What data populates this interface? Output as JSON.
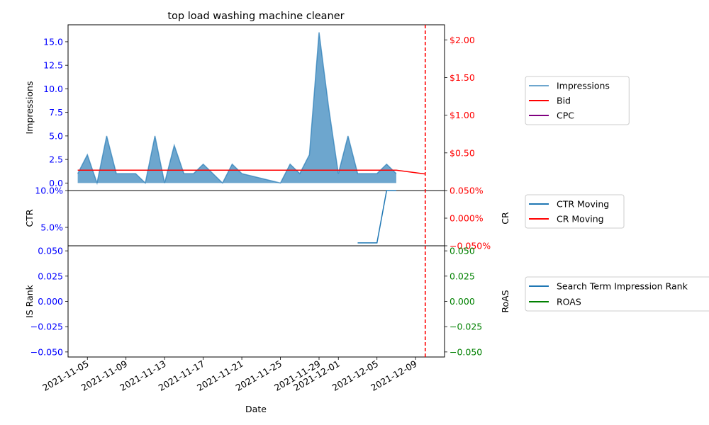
{
  "chart_data": {
    "type": "area",
    "title": "top load washing machine cleaner",
    "xlabel": "Date",
    "x_ticks": [
      "2021-11-05",
      "2021-11-09",
      "2021-11-13",
      "2021-11-17",
      "2021-11-21",
      "2021-11-25",
      "2021-11-29",
      "2021-12-01",
      "2021-12-05",
      "2021-12-09"
    ],
    "x_range": [
      "2021-11-03",
      "2021-12-12"
    ],
    "marker_date": "2021-12-10",
    "panels": [
      {
        "id": "impressions",
        "left_label": "Impressions",
        "right_label": "",
        "left_ticks": [
          "0.0",
          "2.5",
          "5.0",
          "7.5",
          "10.0",
          "12.5",
          "15.0"
        ],
        "left_range": [
          -0.8,
          16.8
        ],
        "right_ticks": [
          "$0.50",
          "$1.00",
          "$1.50",
          "$2.00"
        ],
        "right_range": [
          0.0,
          2.2
        ],
        "series": [
          {
            "name": "Impressions",
            "axis": "left",
            "style": "area",
            "color": "#1f77b4",
            "dates": [
              "2021-11-04",
              "2021-11-05",
              "2021-11-06",
              "2021-11-07",
              "2021-11-08",
              "2021-11-10",
              "2021-11-11",
              "2021-11-12",
              "2021-11-13",
              "2021-11-14",
              "2021-11-15",
              "2021-11-16",
              "2021-11-17",
              "2021-11-18",
              "2021-11-19",
              "2021-11-20",
              "2021-11-21",
              "2021-11-25",
              "2021-11-26",
              "2021-11-27",
              "2021-11-28",
              "2021-11-29",
              "2021-11-30",
              "2021-12-01",
              "2021-12-02",
              "2021-12-03",
              "2021-12-04",
              "2021-12-05",
              "2021-12-06",
              "2021-12-07"
            ],
            "values": [
              1,
              3,
              0,
              5,
              1,
              1,
              0,
              5,
              0,
              4,
              1,
              1,
              2,
              1,
              0,
              2,
              1,
              0,
              2,
              1,
              3,
              16,
              8,
              1,
              5,
              1,
              1,
              1,
              2,
              1
            ]
          },
          {
            "name": "Bid",
            "axis": "right",
            "style": "line",
            "color": "#ff0000",
            "dates": [
              "2021-11-04",
              "2021-12-07",
              "2021-12-10"
            ],
            "values": [
              0.27,
              0.27,
              0.22
            ]
          },
          {
            "name": "CPC",
            "axis": "right",
            "style": "line",
            "color": "#800080",
            "dates": [],
            "values": []
          }
        ],
        "legend": [
          "Impressions",
          "Bid",
          "CPC"
        ]
      },
      {
        "id": "ctr",
        "left_label": "CTR",
        "right_label": "CR",
        "left_ticks": [
          "5.0%",
          "10.0%"
        ],
        "left_range": [
          2.5,
          10.0
        ],
        "right_ticks": [
          "−0.050%",
          "0.000%",
          "0.050%"
        ],
        "right_range": [
          -0.05,
          0.05
        ],
        "series": [
          {
            "name": "CTR Moving",
            "axis": "left",
            "style": "line",
            "color": "#1f77b4",
            "dates": [
              "2021-12-03",
              "2021-12-05",
              "2021-12-06",
              "2021-12-07"
            ],
            "values": [
              2.9,
              2.9,
              10.0,
              10.0
            ]
          },
          {
            "name": "CR Moving",
            "axis": "right",
            "style": "line",
            "color": "#ff0000",
            "dates": [],
            "values": []
          }
        ],
        "legend": [
          "CTR Moving",
          "CR Moving"
        ]
      },
      {
        "id": "isrank",
        "left_label": "IS Rank",
        "right_label": "RoAS",
        "left_ticks": [
          "−0.050",
          "−0.025",
          "0.000",
          "0.025",
          "0.050"
        ],
        "left_range": [
          -0.055,
          0.055
        ],
        "right_ticks": [
          "−0.050",
          "−0.025",
          "0.000",
          "0.025",
          "0.050"
        ],
        "right_range": [
          -0.055,
          0.055
        ],
        "series": [
          {
            "name": "Search Term Impression Rank",
            "axis": "left",
            "style": "line",
            "color": "#1f77b4",
            "dates": [],
            "values": []
          },
          {
            "name": "ROAS",
            "axis": "right",
            "style": "line",
            "color": "#008000",
            "dates": [],
            "values": []
          }
        ],
        "legend": [
          "Search Term Impression Rank",
          "ROAS"
        ]
      }
    ],
    "colors": {
      "left_axis": "#0000ff",
      "right_axis_top": "#ff0000",
      "right_axis_mid": "#ff0000",
      "right_axis_bottom": "#008000",
      "marker": "#ff0000"
    }
  }
}
